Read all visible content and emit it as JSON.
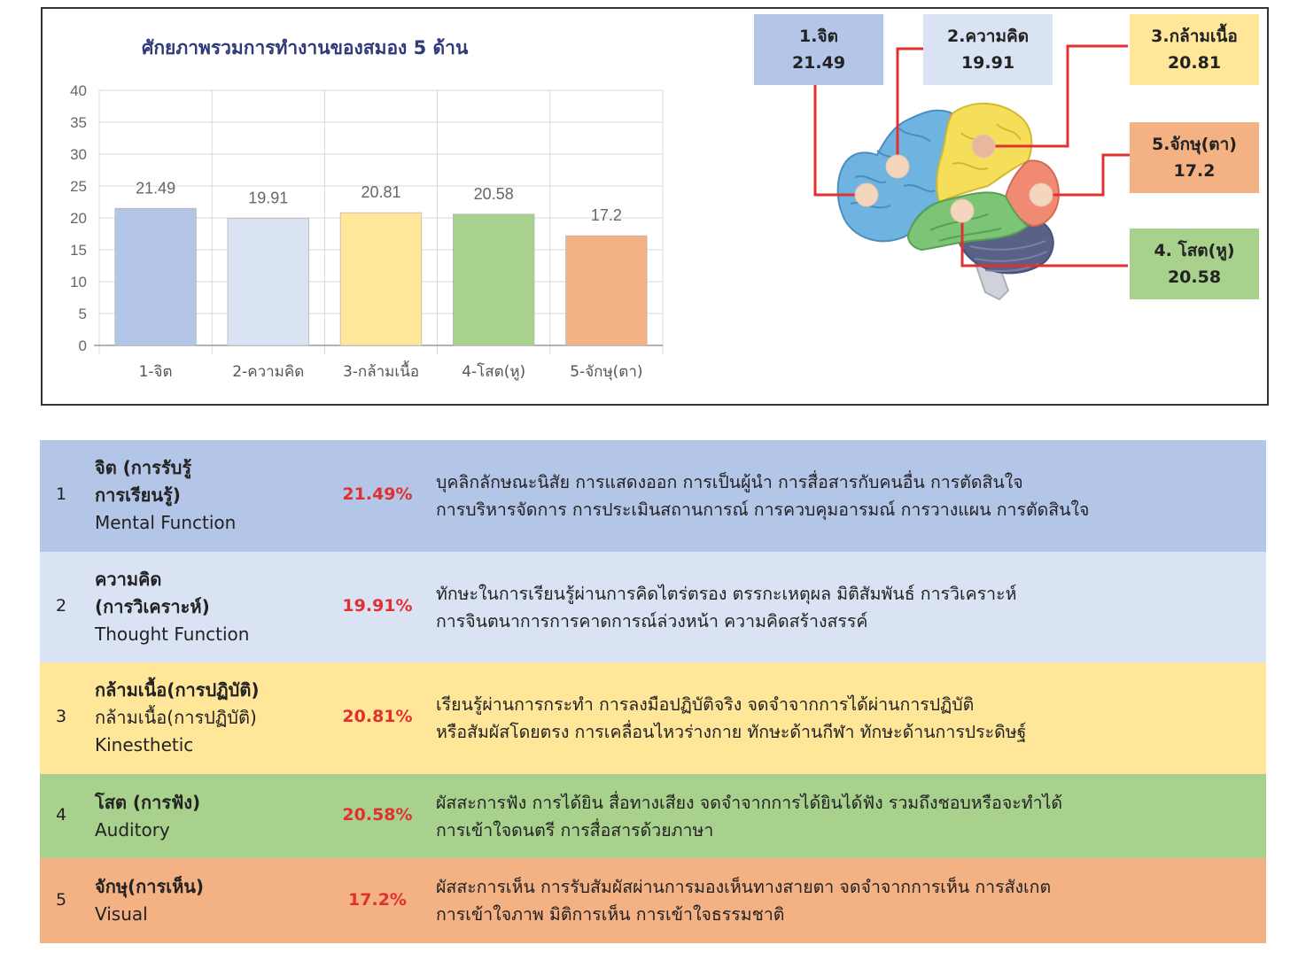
{
  "chart_data": {
    "type": "bar",
    "title": "ศักยภาพรวมการทำงานของสมอง 5 ด้าน",
    "categories": [
      "1-จิต",
      "2-ความคิด",
      "3-กล้ามเนื้อ",
      "4-โสต(หู)",
      "5-จักษุ(ตา)"
    ],
    "values": [
      21.49,
      19.91,
      20.81,
      20.58,
      17.2
    ],
    "data_labels": [
      "21.49",
      "19.91",
      "20.81",
      "20.58",
      "17.2"
    ],
    "colors": [
      "#b4c6e7",
      "#dae3f3",
      "#ffe699",
      "#a9d18e",
      "#f4b183"
    ],
    "ylim": [
      0,
      40
    ],
    "yticks": [
      0,
      5,
      10,
      15,
      20,
      25,
      30,
      35,
      40
    ],
    "grid": true,
    "xlabel": "",
    "ylabel": ""
  },
  "brain_callouts": [
    {
      "label": "1.จิต",
      "value": "21.49",
      "color": "#b4c6e7"
    },
    {
      "label": "2.ความคิด",
      "value": "19.91",
      "color": "#dae3f3"
    },
    {
      "label": "3.กล้ามเนื้อ",
      "value": "20.81",
      "color": "#ffe699"
    },
    {
      "label": "5.จักษุ(ตา)",
      "value": "17.2",
      "color": "#f4b183"
    },
    {
      "label": "4. โสต(หู)",
      "value": "20.58",
      "color": "#a9d18e"
    }
  ],
  "line_color": "#e03030",
  "table": {
    "rows": [
      {
        "num": "1",
        "name_lines": [
          "จิต (การรับรู้",
          "การเรียนรู้)"
        ],
        "sub_lines": [
          "Mental Function"
        ],
        "pct": "21.49%",
        "desc": [
          "บุคลิกลักษณะนิสัย การแสดงออก การเป็นผู้นำ การสื่อสารกับคนอื่น การตัดสินใจ",
          "การบริหารจัดการ การประเมินสถานการณ์ การควบคุมอารมณ์ การวางแผน การตัดสินใจ"
        ],
        "color": "#b4c6e7"
      },
      {
        "num": "2",
        "name_lines": [
          "ความคิด",
          "(การวิเคราะห์)"
        ],
        "sub_lines": [
          "Thought Function"
        ],
        "pct": "19.91%",
        "desc": [
          "ทักษะในการเรียนรู้ผ่านการคิดไตร่ตรอง ตรรกะเหตุผล มิติสัมพันธ์ การวิเคราะห์",
          "การจินตนาการการคาดการณ์ล่วงหน้า ความคิดสร้างสรรค์"
        ],
        "color": "#dae3f3"
      },
      {
        "num": "3",
        "name_lines": [
          "กล้ามเนื้อ(การปฏิบัติ)"
        ],
        "sub_lines": [
          "กล้ามเนื้อ(การปฏิบัติ)",
          "Kinesthetic"
        ],
        "pct": "20.81%",
        "desc": [
          "เรียนรู้ผ่านการกระทำ การลงมือปฏิบัติจริง จดจำจากการได้ผ่านการปฏิบัติ",
          "หรือสัมผัสโดยตรง การเคลื่อนไหวร่างกาย ทักษะด้านกีฬา ทักษะด้านการประดิษฐ์"
        ],
        "color": "#ffe699"
      },
      {
        "num": "4",
        "name_lines": [
          "โสต (การฟัง)"
        ],
        "sub_lines": [
          "Auditory"
        ],
        "pct": "20.58%",
        "desc": [
          "ผัสสะการฟัง การได้ยิน สื่อทางเสียง จดจำจากการได้ยินได้ฟัง รวมถึงชอบหรือจะทำได้",
          "การเข้าใจดนตรี การสื่อสารด้วยภาษา"
        ],
        "color": "#a9d18e"
      },
      {
        "num": "5",
        "name_lines": [
          "จักษุ(การเห็น)"
        ],
        "sub_lines": [
          "Visual"
        ],
        "pct": "17.2%",
        "desc": [
          "ผัสสะการเห็น การรับสัมผัสผ่านการมองเห็นทางสายตา จดจำจากการเห็น การสังเกต",
          "การเข้าใจภาพ มิติการเห็น การเข้าใจธรรมชาติ"
        ],
        "color": "#f4b183"
      }
    ]
  }
}
